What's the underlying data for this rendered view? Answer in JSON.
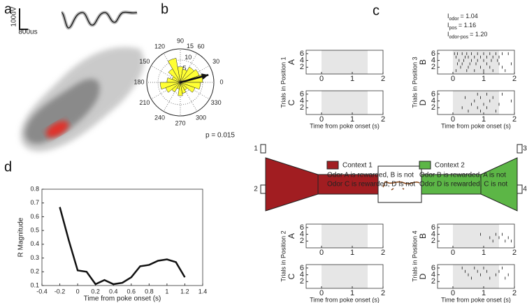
{
  "panel_labels": [
    "a",
    "b",
    "c",
    "d"
  ],
  "scale_bar": {
    "y_label": "100uV",
    "x_label": "800us"
  },
  "stats": [
    {
      "symbol": "I",
      "sub": "odor",
      "rest": "= 1.04"
    },
    {
      "symbol": "I",
      "sub": "pos",
      "rest": "= 1.16"
    },
    {
      "symbol": "I",
      "sub": "odor-pos",
      "rest": "= 1.20"
    }
  ],
  "diagram": {
    "context1": {
      "title": "Context 1",
      "lines": [
        "Odor A is rewarded, B is not",
        "Odor C is rewarded, D is not"
      ],
      "color": "#a11d21"
    },
    "context2": {
      "title": "Context 2",
      "lines": [
        "Odor B is rewarded, A is not",
        "Odor D is rewarded, C is not"
      ],
      "color": "#5cb646"
    },
    "ports": [
      "1",
      "2",
      "3",
      "4"
    ]
  },
  "chart_data": [
    {
      "type": "polar",
      "bins": [
        0,
        20,
        40,
        60,
        80,
        100,
        120,
        140,
        160,
        180,
        200,
        220,
        240,
        260,
        280,
        300,
        320,
        340,
        360
      ],
      "counts": [
        10,
        9,
        8,
        6,
        7,
        11,
        7,
        4,
        6,
        9,
        7,
        5,
        3,
        6,
        5,
        4,
        7,
        9
      ],
      "color": "#ffff33",
      "rlim": [
        0,
        15
      ],
      "rticks": [
        5,
        10,
        15
      ],
      "theta_ticks": [
        0,
        30,
        60,
        90,
        120,
        150,
        180,
        210,
        240,
        270,
        300,
        330
      ],
      "resultant": {
        "angle": 15,
        "length": 13
      },
      "annotation": "p = 0.015"
    },
    {
      "type": "raster",
      "xlabel": "Time from poke onset (s)",
      "xlim": [
        -0.5,
        2
      ],
      "xticks": [
        0,
        1,
        2
      ],
      "ylim": [
        0,
        7
      ],
      "yticks": [
        2,
        4,
        6
      ],
      "shade": [
        0,
        1.5
      ],
      "positions": [
        {
          "label": "Trials in Position 1",
          "panels": [
            {
              "odor": "A",
              "trials": []
            },
            {
              "odor": "C",
              "trials": []
            }
          ]
        },
        {
          "label": "Trials in Position 3",
          "panels": [
            {
              "odor": "B",
              "trials": [
                [
                  0.1,
                  0.45,
                  0.7,
                  1.0,
                  1.3,
                  1.7
                ],
                [
                  0.25,
                  0.5,
                  0.9,
                  1.2,
                  1.6
                ],
                [
                  0.15,
                  0.3,
                  0.55,
                  0.75,
                  1.1,
                  1.5,
                  1.9
                ],
                [
                  0.2,
                  0.35,
                  0.6,
                  0.8,
                  1.0,
                  1.25,
                  1.45
                ],
                [
                  0.1,
                  0.4,
                  0.5,
                  0.7,
                  0.9,
                  1.1,
                  1.3,
                  1.5
                ],
                [
                  0.05,
                  0.15,
                  0.3,
                  0.45,
                  0.6,
                  0.8,
                  1.0,
                  1.2,
                  1.4,
                  1.6,
                  1.8
                ]
              ]
            },
            {
              "odor": "D",
              "trials": [
                [
                  0.5,
                  0.9,
                  1.4
                ],
                [
                  0.3,
                  0.8,
                  1.1
                ],
                [
                  0.6,
                  1.0,
                  1.5
                ],
                [
                  0.7,
                  1.2,
                  1.9
                ],
                [
                  0.4,
                  0.9,
                  1.3
                ],
                [
                  0.8,
                  1.1,
                  1.6
                ]
              ]
            }
          ]
        },
        {
          "label": "Trials in Position 2",
          "panels": [
            {
              "odor": "A",
              "trials": []
            },
            {
              "odor": "C",
              "trials": []
            }
          ]
        },
        {
          "label": "Trials in Position 4",
          "panels": [
            {
              "odor": "B",
              "trials": [
                [],
                [
                  1.3,
                  1.7,
                  1.9
                ],
                [
                  1.2,
                  1.5,
                  1.8
                ],
                [
                  0.9,
                  1.4,
                  1.6
                ],
                [],
                []
              ]
            },
            {
              "odor": "D",
              "trials": [
                [],
                [],
                [
                  0.6,
                  1.2,
                  1.7
                ],
                [
                  0.5,
                  0.9,
                  1.4,
                  1.8
                ],
                [
                  0.4,
                  0.8,
                  1.1,
                  1.5
                ],
                [
                  0.3,
                  0.7,
                  1.0,
                  1.6
                ]
              ]
            }
          ]
        }
      ]
    },
    {
      "type": "line",
      "xlabel": "Time from poke onset (s)",
      "ylabel": "R Magnitude",
      "color": "#111",
      "x": [
        -0.2,
        -0.1,
        0,
        0.1,
        0.2,
        0.3,
        0.4,
        0.5,
        0.6,
        0.7,
        0.8,
        0.9,
        1.0,
        1.1,
        1.2
      ],
      "values": [
        0.67,
        0.43,
        0.21,
        0.2,
        0.11,
        0.14,
        0.11,
        0.12,
        0.16,
        0.24,
        0.25,
        0.28,
        0.29,
        0.27,
        0.16
      ],
      "xlim": [
        -0.4,
        1.4
      ],
      "xticks": [
        -0.4,
        -0.2,
        0,
        0.2,
        0.4,
        0.6,
        0.8,
        1,
        1.2,
        1.4
      ],
      "ylim": [
        0.1,
        0.8
      ],
      "yticks": [
        0.1,
        0.2,
        0.3,
        0.4,
        0.5,
        0.6,
        0.7,
        0.8
      ]
    }
  ]
}
